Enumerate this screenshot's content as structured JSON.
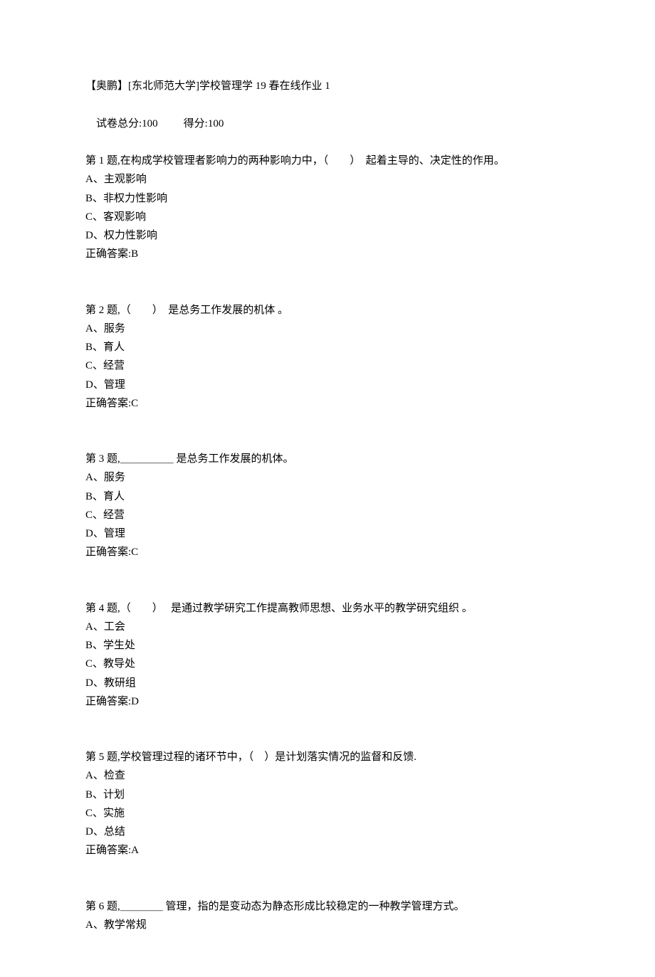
{
  "font": {
    "family": "SimSun",
    "size_pt": 11,
    "color": "#000000"
  },
  "background_color": "#ffffff",
  "header": {
    "title": "【奥鹏】[东北师范大学]学校管理学 19 春在线作业 1",
    "total_label": "试卷总分:",
    "total_value": "100",
    "score_label": "得分:",
    "score_value": "100"
  },
  "questions": [
    {
      "prompt": "第 1 题,在构成学校管理者影响力的两种影响力中，（　　）　起着主导的、决定性的作用。",
      "options": [
        "A、主观影响",
        "B、非权力性影响",
        "C、客观影响",
        "D、权力性影响"
      ],
      "answer": "正确答案:B"
    },
    {
      "prompt": "第 2 题,（　　）　是总务工作发展的机体 。",
      "options": [
        "A、服务",
        "B、育人",
        "C、经营",
        "D、管理"
      ],
      "answer": "正确答案:C"
    },
    {
      "prompt": "第 3 题,＿＿＿＿＿ 是总务工作发展的机体。",
      "options": [
        "A、服务",
        "B、育人",
        "C、经营",
        "D、管理"
      ],
      "answer": "正确答案:C"
    },
    {
      "prompt": "第 4 题,（　　）　 是通过教学研究工作提高教师思想、业务水平的教学研究组织 。",
      "options": [
        "A、工会",
        "B、学生处",
        "C、教导处",
        "D、教研组"
      ],
      "answer": "正确答案:D"
    },
    {
      "prompt": "第 5 题,学校管理过程的诸环节中，（　）是计划落实情况的监督和反馈.",
      "options": [
        "A、检查",
        "B、计划",
        "C、实施",
        "D、总结"
      ],
      "answer": "正确答案:A"
    },
    {
      "prompt": "第 6 题,＿＿＿＿ 管理，指的是变动态为静态形成比较稳定的一种教学管理方式。",
      "options": [
        "A、教学常规"
      ],
      "answer": ""
    }
  ]
}
